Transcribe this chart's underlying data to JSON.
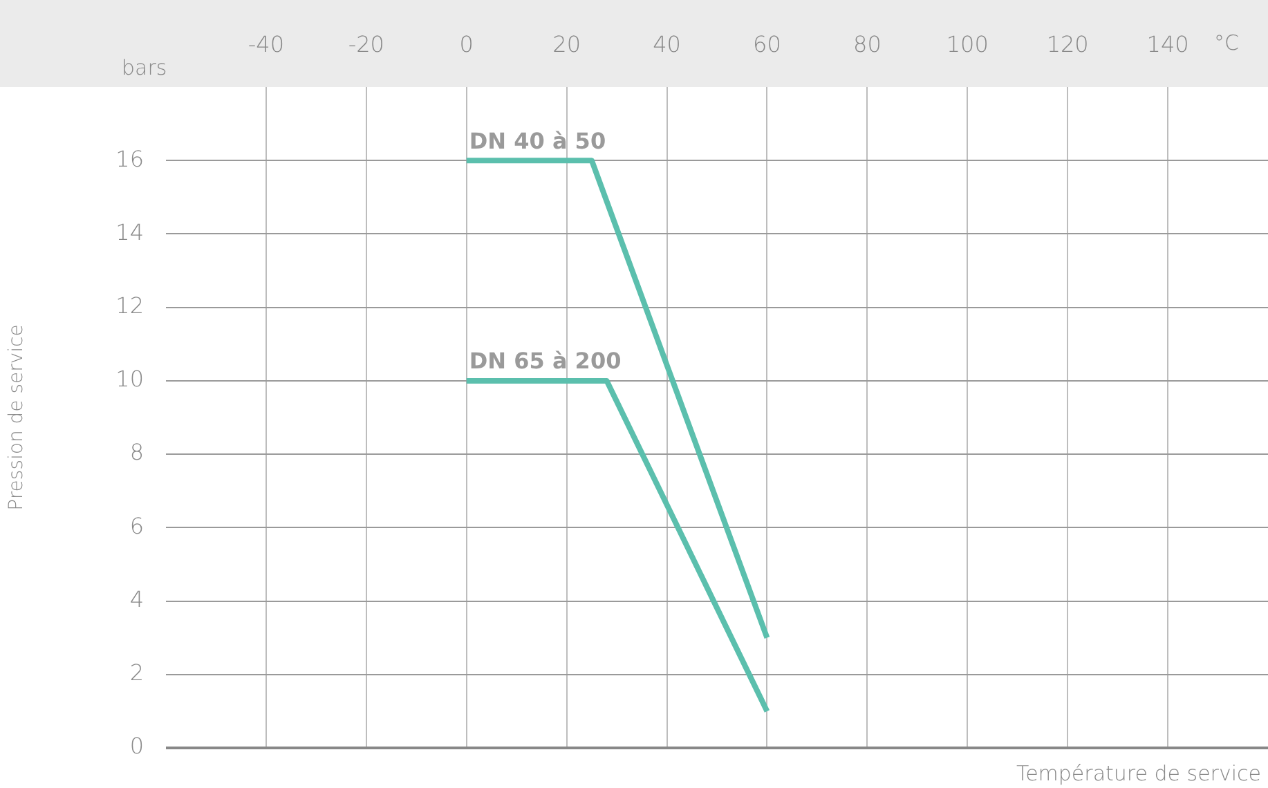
{
  "chart_data": {
    "type": "line",
    "xlabel": "Température de service",
    "ylabel": "Pression de service",
    "annotations": [
      "bars",
      "°C"
    ],
    "xlim": [
      -60,
      160
    ],
    "xticks": [
      -40,
      -20,
      0,
      20,
      40,
      60,
      80,
      100,
      120,
      140
    ],
    "ylim": [
      0,
      18
    ],
    "yticks": [
      0,
      2,
      4,
      6,
      8,
      10,
      12,
      14,
      16
    ],
    "grid": true,
    "legend": false,
    "marker": "none",
    "line_style": "solid",
    "series": [
      {
        "name": "DN 40 à 50",
        "color": "#5bbfad",
        "x": [
          0,
          25,
          60
        ],
        "values": [
          16,
          16,
          3
        ]
      },
      {
        "name": "DN 65 à 200",
        "color": "#5bbfad",
        "x": [
          0,
          28,
          60
        ],
        "values": [
          10,
          10,
          1
        ]
      }
    ]
  }
}
